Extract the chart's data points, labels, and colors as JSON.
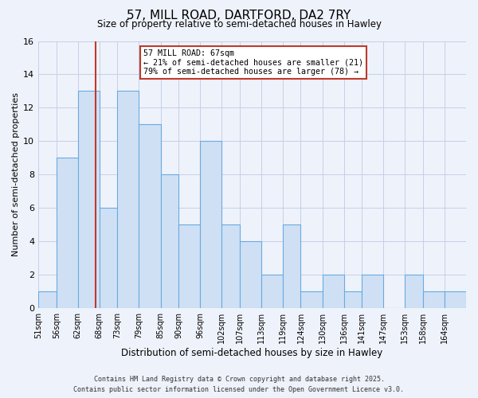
{
  "title": "57, MILL ROAD, DARTFORD, DA2 7RY",
  "subtitle": "Size of property relative to semi-detached houses in Hawley",
  "xlabel": "Distribution of semi-detached houses by size in Hawley",
  "ylabel": "Number of semi-detached properties",
  "bin_edges": [
    51,
    56,
    62,
    68,
    73,
    79,
    85,
    90,
    96,
    102,
    107,
    113,
    119,
    124,
    130,
    136,
    141,
    147,
    153,
    158,
    164,
    170
  ],
  "counts": [
    1,
    9,
    13,
    6,
    13,
    11,
    8,
    5,
    10,
    5,
    4,
    2,
    5,
    1,
    2,
    1,
    2,
    0,
    2,
    1,
    1
  ],
  "bin_labels": [
    "51sqm",
    "56sqm",
    "62sqm",
    "68sqm",
    "73sqm",
    "79sqm",
    "85sqm",
    "90sqm",
    "96sqm",
    "102sqm",
    "107sqm",
    "113sqm",
    "119sqm",
    "124sqm",
    "130sqm",
    "136sqm",
    "141sqm",
    "147sqm",
    "153sqm",
    "158sqm",
    "164sqm"
  ],
  "bar_fill": "#cfe0f5",
  "bar_edge": "#6aaae0",
  "vline_x": 67,
  "vline_color": "#c0392b",
  "annotation_title": "57 MILL ROAD: 67sqm",
  "annotation_line1": "← 21% of semi-detached houses are smaller (21)",
  "annotation_line2": "79% of semi-detached houses are larger (78) →",
  "annotation_box_facecolor": "#ffffff",
  "annotation_box_edgecolor": "#c0392b",
  "ylim": [
    0,
    16
  ],
  "yticks": [
    0,
    2,
    4,
    6,
    8,
    10,
    12,
    14,
    16
  ],
  "bg_color": "#eef2fa",
  "plot_bg_color": "#eef2fa",
  "grid_color": "#c5cfe8",
  "footer_line1": "Contains HM Land Registry data © Crown copyright and database right 2025.",
  "footer_line2": "Contains public sector information licensed under the Open Government Licence v3.0."
}
